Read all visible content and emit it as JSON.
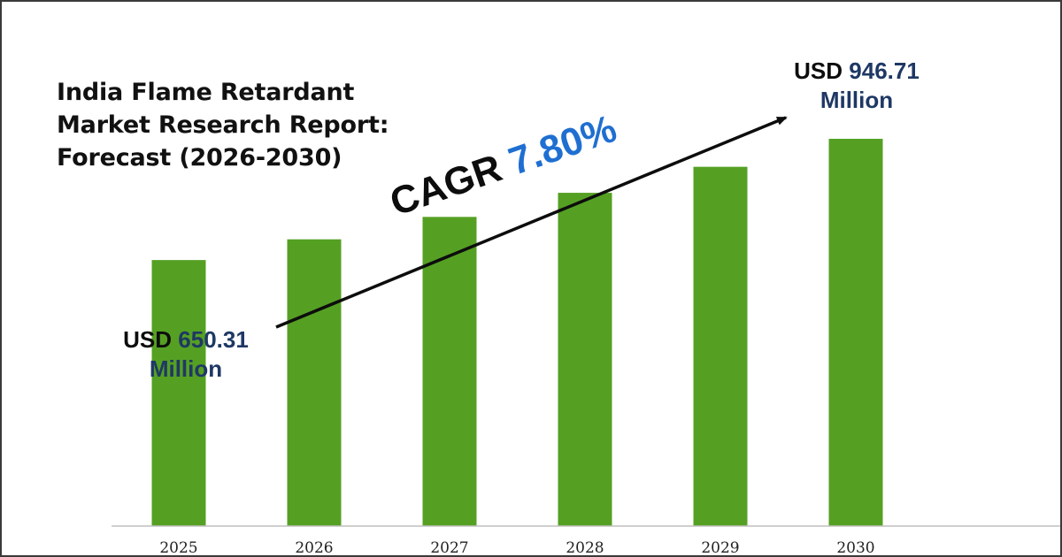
{
  "title": {
    "line1": "India Flame Retardant",
    "line2": "Market Research Report:",
    "line3": "Forecast (2026-2030)"
  },
  "callouts": {
    "start": {
      "prefix": "USD",
      "value": "650.31",
      "suffix": "Million"
    },
    "end": {
      "prefix": "USD",
      "value": "946.71",
      "suffix": "Million"
    }
  },
  "cagr": {
    "label": "CAGR",
    "value": "7.80%"
  },
  "colors": {
    "bar": "#55a023",
    "axis": "#bfbfbf",
    "arrow": "#0d0d0d",
    "cagr_value": "#1f6fd1",
    "callout_value": "#1f3864"
  },
  "chart_data": {
    "type": "bar",
    "categories": [
      "2025",
      "2026",
      "2027",
      "2028",
      "2029",
      "2030"
    ],
    "values": [
      650.31,
      701.0,
      755.8,
      814.7,
      878.3,
      946.71
    ],
    "title": "India Flame Retardant Market Research Report: Forecast (2026-2030)",
    "xlabel": "",
    "ylabel": "",
    "unit": "USD Million",
    "ylim": [
      0,
      1000
    ],
    "grid": false,
    "legend": "none"
  }
}
